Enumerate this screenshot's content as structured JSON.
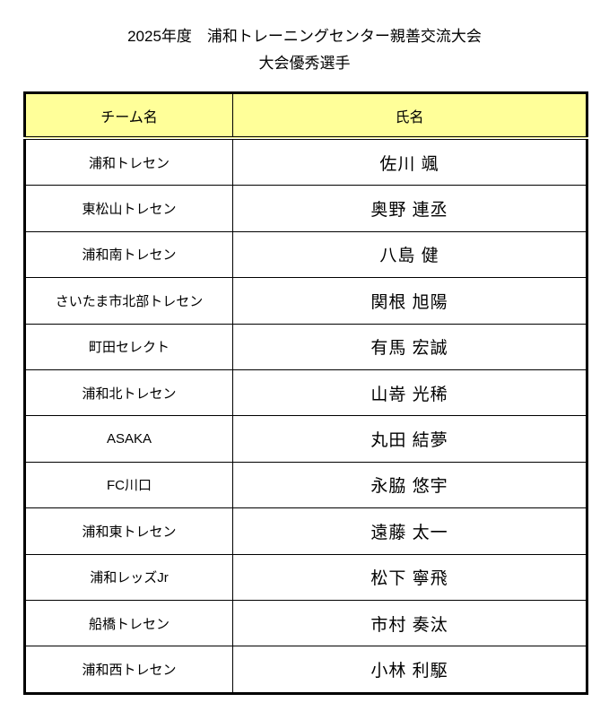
{
  "doc": {
    "title_line1": "2025年度　浦和トレーニングセンター親善交流大会",
    "title_line2": "大会優秀選手"
  },
  "table": {
    "headers": {
      "team": "チーム名",
      "name": "氏名"
    },
    "rows": [
      {
        "team": "浦和トレセン",
        "name": "佐川 颯"
      },
      {
        "team": "東松山トレセン",
        "name": "奥野 連丞"
      },
      {
        "team": "浦和南トレセン",
        "name": "八島 健"
      },
      {
        "team": "さいたま市北部トレセン",
        "name": "関根 旭陽"
      },
      {
        "team": "町田セレクト",
        "name": "有馬 宏誠"
      },
      {
        "team": "浦和北トレセン",
        "name": "山嵜 光稀"
      },
      {
        "team": "ASAKA",
        "name": "丸田 結夢"
      },
      {
        "team": "FC川口",
        "name": "永脇 悠宇"
      },
      {
        "team": "浦和東トレセン",
        "name": "遠藤 太一"
      },
      {
        "team": "浦和レッズJr",
        "name": "松下 寧飛"
      },
      {
        "team": "船橋トレセン",
        "name": "市村 奏汰"
      },
      {
        "team": "浦和西トレセン",
        "name": "小林 利駆"
      }
    ],
    "colors": {
      "header_bg": "#FFFF99",
      "border": "#000000"
    }
  }
}
